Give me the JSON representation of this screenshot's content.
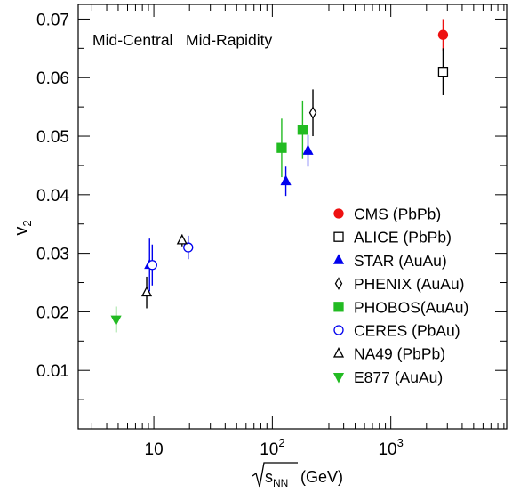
{
  "chart_data": {
    "type": "scatter",
    "annotation": "Mid-Central   Mid-Rapidity",
    "ylabel": "v",
    "ylabel_sub": "2",
    "xlabel_sub": "s",
    "xlabel_subsub": "NN",
    "xlabel_unit": "(GeV)",
    "x_scale": "log",
    "xlim": [
      2.3,
      9500
    ],
    "ylim": [
      0,
      0.0725
    ],
    "x_ticks": [
      {
        "value": 10,
        "base": "10",
        "exp": ""
      },
      {
        "value": 100,
        "base": "10",
        "exp": "2"
      },
      {
        "value": 1000,
        "base": "10",
        "exp": "3"
      }
    ],
    "y_ticks": [
      {
        "value": 0.01,
        "label": "0.01"
      },
      {
        "value": 0.02,
        "label": "0.02"
      },
      {
        "value": 0.03,
        "label": "0.03"
      },
      {
        "value": 0.04,
        "label": "0.04"
      },
      {
        "value": 0.05,
        "label": "0.05"
      },
      {
        "value": 0.06,
        "label": "0.06"
      },
      {
        "value": 0.07,
        "label": "0.07"
      }
    ],
    "legend_position": "right",
    "series": [
      {
        "name": "CMS (PbPb)",
        "marker": "circle",
        "filled": true,
        "color": "#ee1111",
        "points": [
          {
            "x": 2760,
            "y": 0.0673,
            "err": 0.0027
          }
        ]
      },
      {
        "name": "ALICE (PbPb)",
        "marker": "square",
        "filled": false,
        "color": "#000000",
        "points": [
          {
            "x": 2760,
            "y": 0.061,
            "err": 0.004
          }
        ]
      },
      {
        "name": "STAR (AuAu)",
        "marker": "triangle-up",
        "filled": true,
        "color": "#0000ee",
        "points": [
          {
            "x": 9.2,
            "y": 0.028,
            "err": 0.0045
          },
          {
            "x": 130,
            "y": 0.0423,
            "err": 0.0025
          },
          {
            "x": 200,
            "y": 0.0475,
            "err": 0.0027
          }
        ]
      },
      {
        "name": "PHENIX (AuAu)",
        "marker": "diamond",
        "filled": false,
        "color": "#000000",
        "points": [
          {
            "x": 220,
            "y": 0.054,
            "err": 0.004
          }
        ]
      },
      {
        "name": "PHOBOS(AuAu)",
        "marker": "square",
        "filled": true,
        "color": "#22bb22",
        "points": [
          {
            "x": 120,
            "y": 0.048,
            "err": 0.005
          },
          {
            "x": 180,
            "y": 0.0511,
            "err": 0.005
          }
        ]
      },
      {
        "name": "CERES (PbAu)",
        "marker": "circle",
        "filled": false,
        "color": "#0000ee",
        "points": [
          {
            "x": 9.7,
            "y": 0.028,
            "err": 0.0035
          },
          {
            "x": 19.5,
            "y": 0.031,
            "err": 0.002
          }
        ]
      },
      {
        "name": "NA49 (PbPb)",
        "marker": "triangle-up",
        "filled": false,
        "color": "#000000",
        "points": [
          {
            "x": 8.7,
            "y": 0.0233,
            "err": 0.0027
          },
          {
            "x": 17.3,
            "y": 0.0322,
            "err": 0.001
          }
        ]
      },
      {
        "name": "E877 (AuAu)",
        "marker": "triangle-down",
        "filled": true,
        "color": "#22bb22",
        "points": [
          {
            "x": 4.8,
            "y": 0.0187,
            "err": 0.0022
          }
        ]
      }
    ]
  }
}
